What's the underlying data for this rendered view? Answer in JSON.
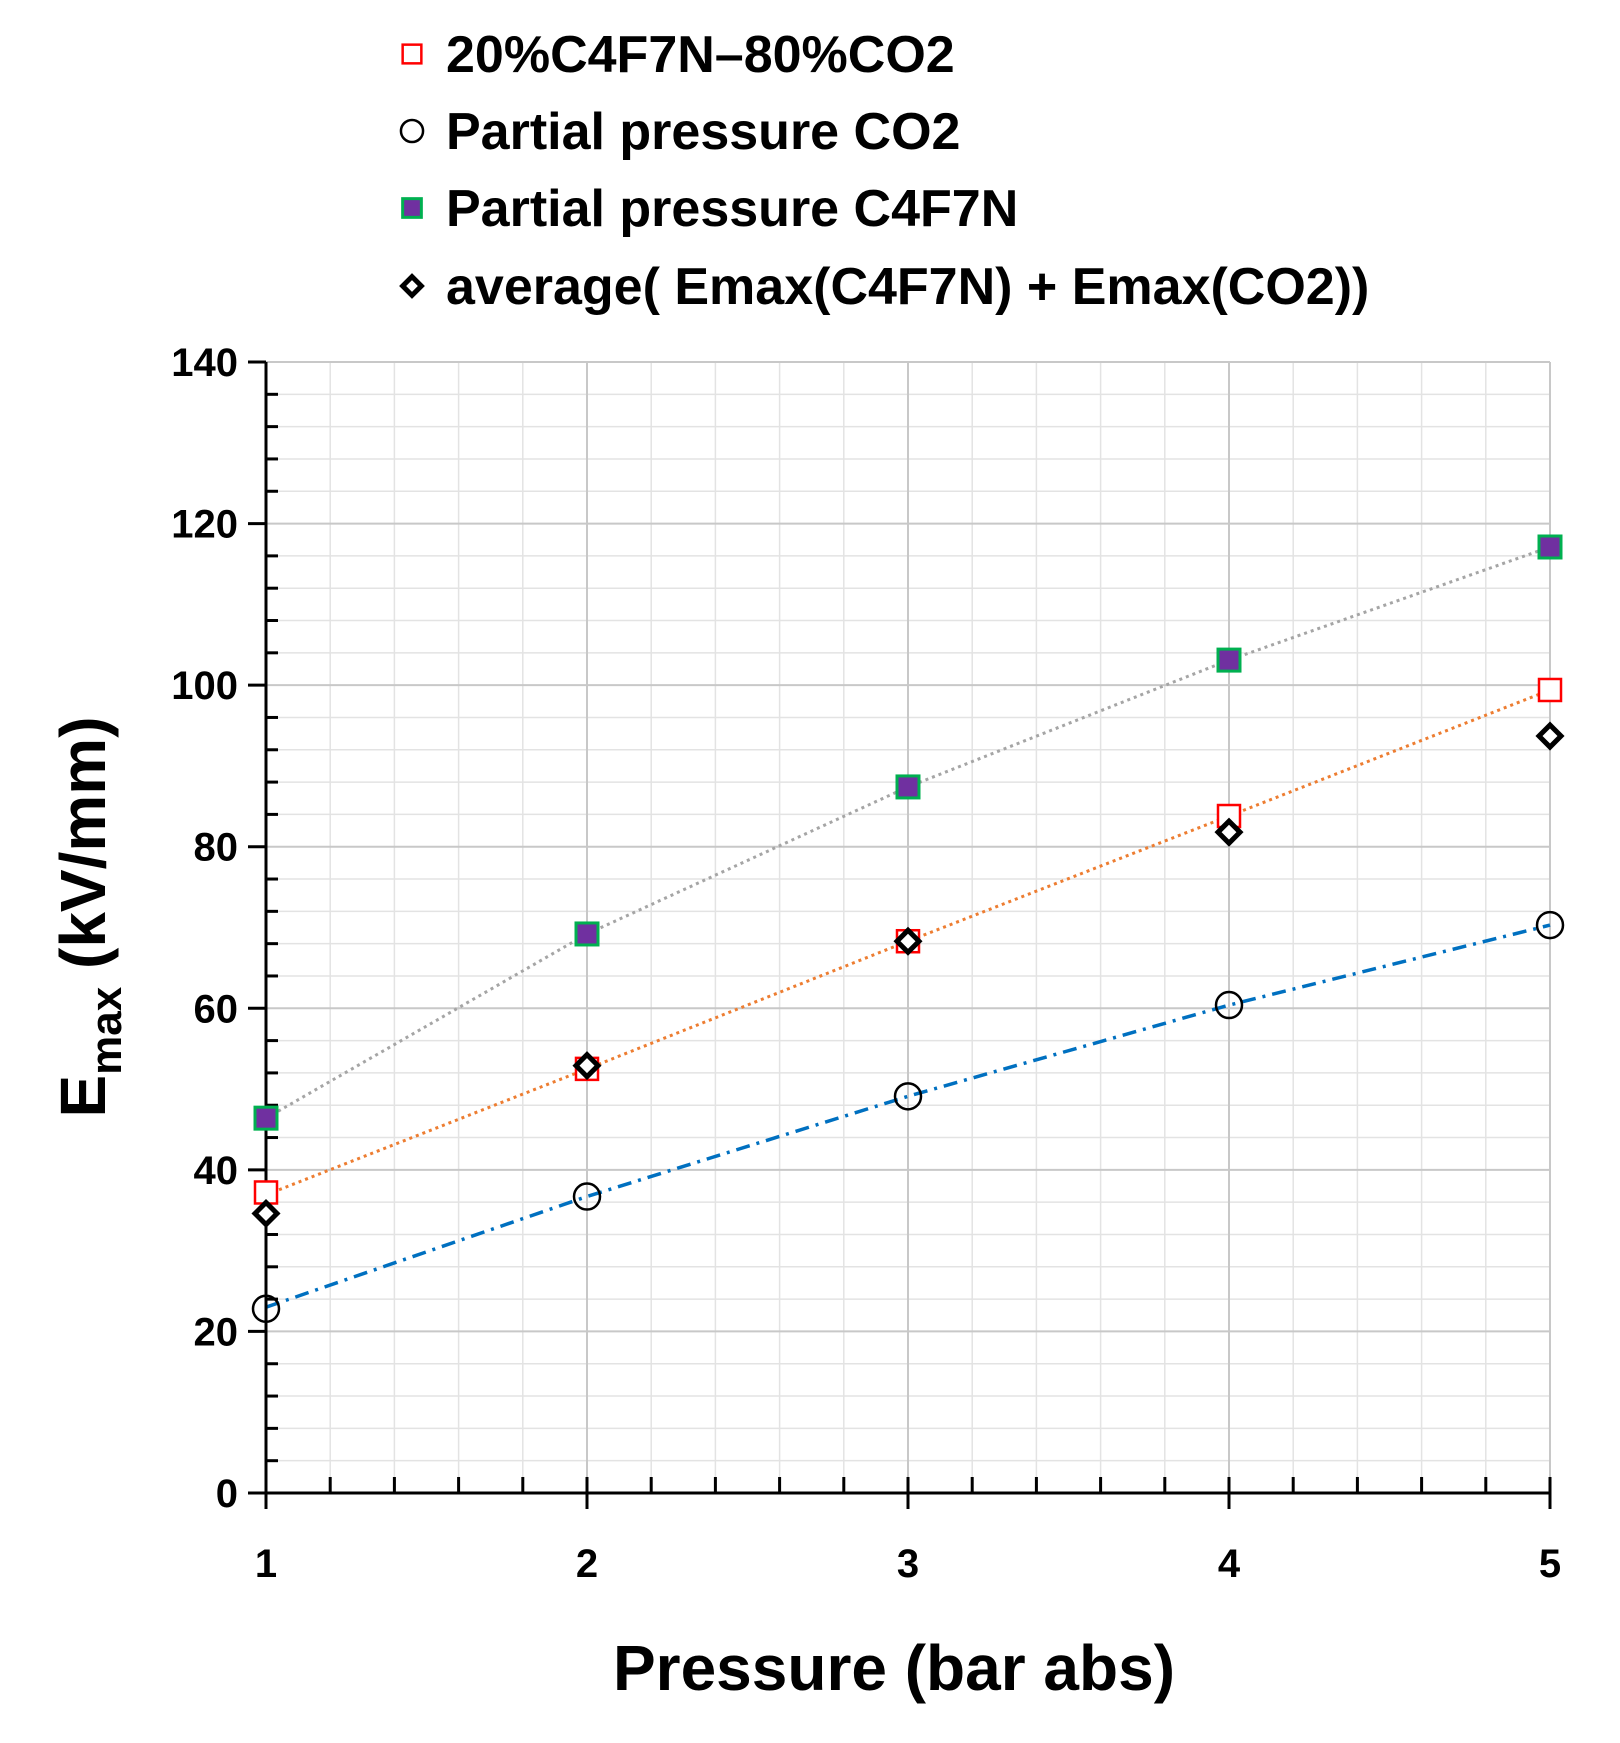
{
  "chart_data": {
    "type": "scatter",
    "title": "",
    "xlabel": "Pressure (bar abs)",
    "ylabel_main": "E",
    "ylabel_sub": "max",
    "ylabel_unit": " (kV/mm)",
    "xlim": [
      1,
      5
    ],
    "ylim": [
      0,
      140
    ],
    "x_ticks": [
      1,
      2,
      3,
      4,
      5
    ],
    "y_ticks": [
      0,
      20,
      40,
      60,
      80,
      100,
      120,
      140
    ],
    "legend_position": "top",
    "grid": true,
    "series": [
      {
        "name": "20%C4F7N–80%CO2",
        "marker": "square-open",
        "color": "#ff0000",
        "x": [
          1,
          2,
          3,
          4,
          5
        ],
        "y": [
          37.2,
          52.5,
          68.3,
          83.8,
          99.4
        ],
        "trendline": {
          "style": "dotted",
          "color": "#ed7d31",
          "y_start": 36.9,
          "y_end": 99.4
        }
      },
      {
        "name": "Partial pressure CO2",
        "marker": "circle-open",
        "color": "#000000",
        "x": [
          1,
          2,
          3,
          4,
          5
        ],
        "y": [
          22.8,
          36.7,
          49.1,
          60.4,
          70.3
        ],
        "trendline": {
          "style": "dashdot",
          "color": "#0070c0",
          "y_start": 23.0,
          "y_end": 70.3
        }
      },
      {
        "name": "Partial pressure C4F7N",
        "marker": "square-filled",
        "color": "#7030a0",
        "edge_color": "#00b050",
        "x": [
          1,
          2,
          3,
          4,
          5
        ],
        "y": [
          46.4,
          69.2,
          87.4,
          103.1,
          117.1
        ],
        "trendline": {
          "style": "dotted",
          "color": "#a5a5a5",
          "y_start": 46.4,
          "y_end": 117.1
        }
      },
      {
        "name": "average( Emax(C4F7N) + Emax(CO2))",
        "marker": "diamond-open",
        "color": "#000000",
        "x": [
          1,
          2,
          3,
          4,
          5
        ],
        "y": [
          34.6,
          52.9,
          68.3,
          81.8,
          93.7
        ]
      }
    ]
  }
}
